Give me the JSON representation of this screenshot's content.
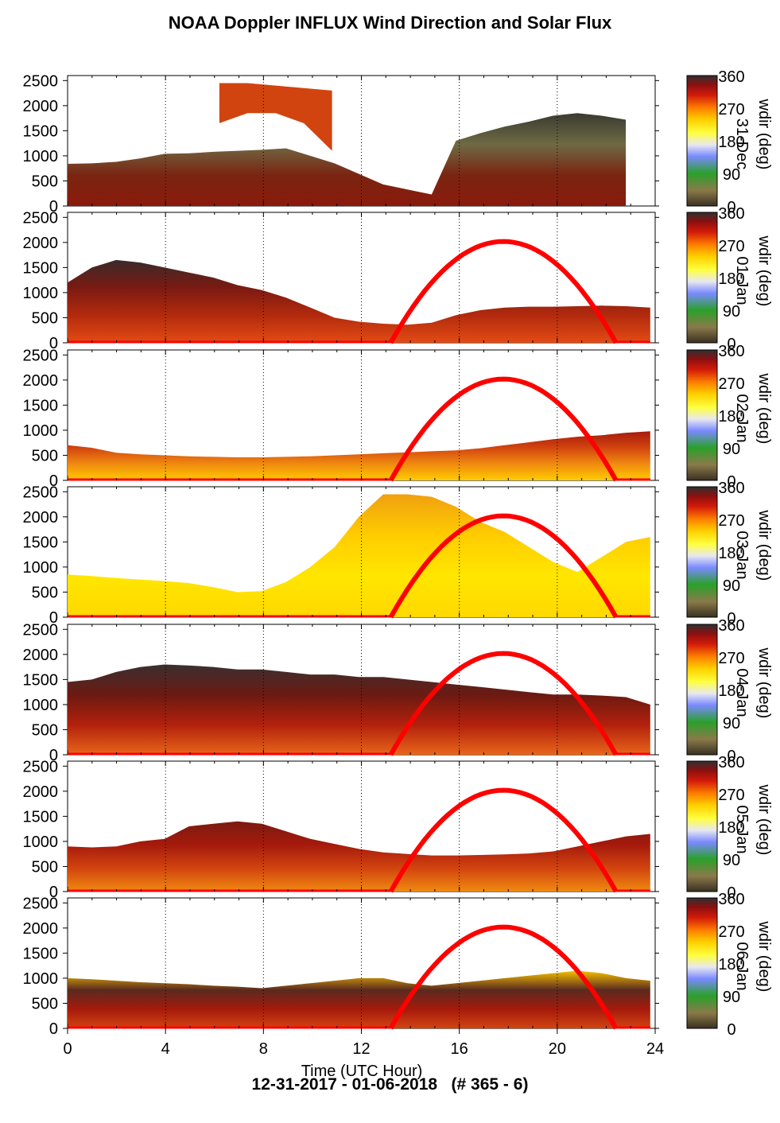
{
  "chart_data": {
    "type": "heatmap",
    "title": "NOAA Doppler INFLUX Wind Direction and Solar Flux",
    "footer": "12-31-2017 - 01-06-2018   (# 365 - 6)",
    "xlabel": "Time (UTC Hour)",
    "x_ticks": [
      "0",
      "4",
      "8",
      "12",
      "16",
      "20",
      "24"
    ],
    "xlim": [
      0,
      24
    ],
    "ylim": [
      0,
      2600
    ],
    "y_ticks": [
      "0",
      "500",
      "1000",
      "1500",
      "2000",
      "2500"
    ],
    "colorbar": {
      "label": "wdir (deg)",
      "ticks": [
        "0",
        "90",
        "180",
        "270",
        "360"
      ],
      "range": [
        0,
        360
      ]
    },
    "solar_curve": {
      "color": "#ff0000",
      "start_hour": 13.2,
      "end_hour": 22.4,
      "peak_hour": 17.8,
      "peak_height_m": 2020
    },
    "panels": [
      {
        "day_label": "31-Dec",
        "solar": false,
        "color_stops": [
          "#8a1a0c",
          "#7a2512",
          "#6e6a44",
          "#3a3a30"
        ],
        "regions": [
          {
            "x": [
              0,
              22.8
            ],
            "top": [
              840,
              850,
              880,
              950,
              1040,
              1050,
              1080,
              1100,
              1120,
              1150,
              1000,
              850,
              640,
              430,
              330,
              230,
              1300,
              1450,
              1580,
              1680,
              1800,
              1850,
              1800,
              1720
            ]
          },
          {
            "x": [
              6.2,
              10.8
            ],
            "top": [
              2450,
              2450,
              2400,
              2350,
              2300
            ],
            "bottom": [
              1650,
              1850,
              1850,
              1650,
              1100
            ],
            "color": "#d2440f"
          }
        ]
      },
      {
        "day_label": "01-Jan",
        "solar": true,
        "color_stops": [
          "#e34b14",
          "#b22a0d",
          "#7a1a12",
          "#3a2a2a"
        ],
        "regions": [
          {
            "x": [
              0,
              23.8
            ],
            "top": [
              1200,
              1500,
              1650,
              1600,
              1500,
              1400,
              1300,
              1150,
              1050,
              900,
              700,
              500,
              420,
              380,
              360,
              400,
              550,
              650,
              700,
              720,
              720,
              730,
              740,
              730,
              700
            ]
          }
        ]
      },
      {
        "day_label": "02-Jan",
        "solar": true,
        "color_stops": [
          "#ffcc00",
          "#f08a10",
          "#d2440f",
          "#a51a0c"
        ],
        "regions": [
          {
            "x": [
              0,
              23.8
            ],
            "top": [
              700,
              650,
              550,
              520,
              500,
              480,
              470,
              460,
              460,
              470,
              480,
              500,
              520,
              540,
              560,
              580,
              600,
              640,
              700,
              760,
              820,
              870,
              900,
              950,
              980
            ]
          }
        ]
      },
      {
        "day_label": "03-Jan",
        "solar": true,
        "color_stops": [
          "#ffd800",
          "#ffe600",
          "#ffcc00",
          "#f0a010"
        ],
        "regions": [
          {
            "x": [
              0,
              23.8
            ],
            "top": [
              850,
              820,
              780,
              750,
              720,
              680,
              600,
              500,
              520,
              700,
              1000,
              1400,
              2000,
              2450,
              2450,
              2400,
              2200,
              1900,
              1700,
              1400,
              1100,
              900,
              1200,
              1500,
              1600
            ]
          }
        ]
      },
      {
        "day_label": "04-Jan",
        "solar": true,
        "color_stops": [
          "#e8661a",
          "#b2200c",
          "#6b1a12",
          "#3a3030"
        ],
        "regions": [
          {
            "x": [
              0,
              23.8
            ],
            "top": [
              1450,
              1500,
              1650,
              1750,
              1800,
              1780,
              1750,
              1700,
              1700,
              1650,
              1600,
              1600,
              1550,
              1550,
              1500,
              1450,
              1400,
              1350,
              1300,
              1250,
              1200,
              1200,
              1180,
              1150,
              1000
            ]
          }
        ]
      },
      {
        "day_label": "05-Jan",
        "solar": true,
        "color_stops": [
          "#f08a10",
          "#d2440f",
          "#a51a0c",
          "#7a1a12"
        ],
        "regions": [
          {
            "x": [
              0,
              23.8
            ],
            "top": [
              900,
              880,
              900,
              1000,
              1050,
              1300,
              1350,
              1400,
              1350,
              1200,
              1050,
              950,
              850,
              780,
              750,
              720,
              720,
              730,
              740,
              760,
              800,
              900,
              1000,
              1100,
              1150
            ]
          }
        ]
      },
      {
        "day_label": "06-Jan",
        "solar": true,
        "color_stops": [
          "#d2440f",
          "#a51a0c",
          "#5a2a20",
          "#f5c000"
        ],
        "regions": [
          {
            "x": [
              0,
              23.8
            ],
            "top": [
              1000,
              980,
              950,
              920,
              900,
              880,
              850,
              830,
              800,
              850,
              900,
              950,
              1000,
              1000,
              900,
              850,
              900,
              950,
              1000,
              1050,
              1100,
              1150,
              1100,
              1000,
              950
            ]
          }
        ]
      }
    ]
  }
}
